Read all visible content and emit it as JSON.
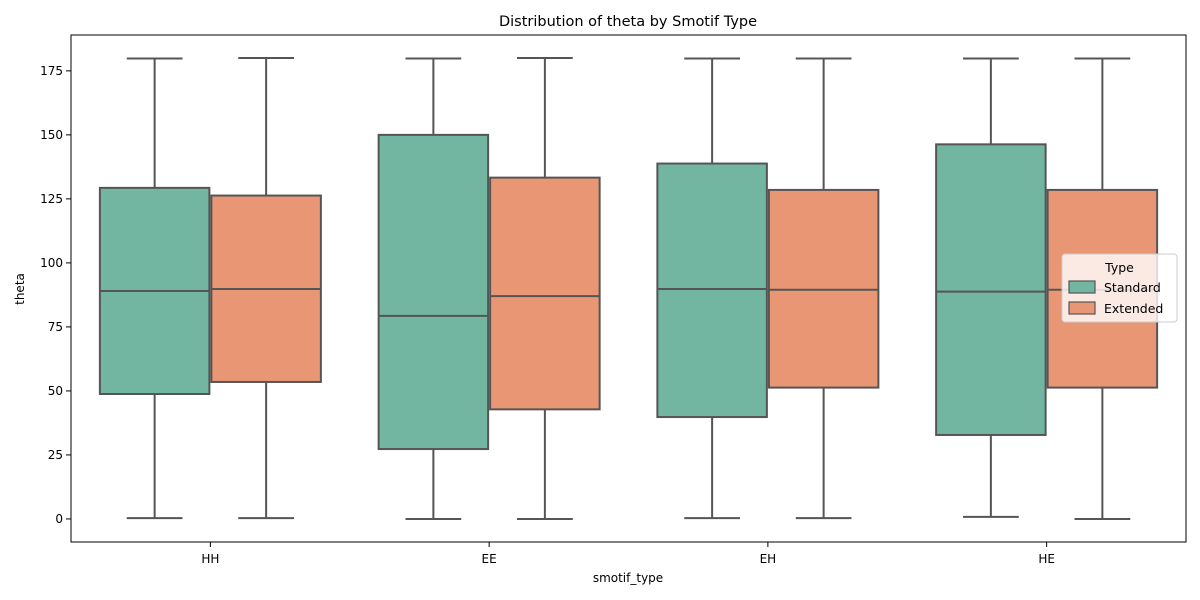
{
  "chart_data": {
    "type": "box",
    "title": "Distribution of theta by Smotif Type",
    "xlabel": "smotif_type",
    "ylabel": "theta",
    "categories": [
      "HH",
      "EE",
      "EH",
      "HE"
    ],
    "ylim": [
      -9,
      189
    ],
    "yticks": [
      0,
      25,
      50,
      75,
      100,
      125,
      150,
      175
    ],
    "grid": false,
    "legend": {
      "title": "Type",
      "position": "center-right"
    },
    "series": [
      {
        "name": "Standard",
        "color": "#72b5a1",
        "boxes": [
          {
            "whisker_low": 0.3,
            "q1": 48.8,
            "median": 89.0,
            "q3": 129.3,
            "whisker_high": 179.8
          },
          {
            "whisker_low": 0.0,
            "q1": 27.3,
            "median": 79.3,
            "q3": 150.0,
            "whisker_high": 179.8
          },
          {
            "whisker_low": 0.3,
            "q1": 39.8,
            "median": 89.8,
            "q3": 138.8,
            "whisker_high": 179.8
          },
          {
            "whisker_low": 0.8,
            "q1": 32.8,
            "median": 88.8,
            "q3": 146.3,
            "whisker_high": 179.8
          }
        ]
      },
      {
        "name": "Extended",
        "color": "#e99675",
        "boxes": [
          {
            "whisker_low": 0.3,
            "q1": 53.5,
            "median": 89.8,
            "q3": 126.3,
            "whisker_high": 180.0
          },
          {
            "whisker_low": 0.0,
            "q1": 42.8,
            "median": 87.0,
            "q3": 133.3,
            "whisker_high": 180.0
          },
          {
            "whisker_low": 0.3,
            "q1": 51.3,
            "median": 89.5,
            "q3": 128.5,
            "whisker_high": 179.8
          },
          {
            "whisker_low": 0.0,
            "q1": 51.3,
            "median": 89.5,
            "q3": 128.5,
            "whisker_high": 179.8
          }
        ]
      }
    ]
  }
}
